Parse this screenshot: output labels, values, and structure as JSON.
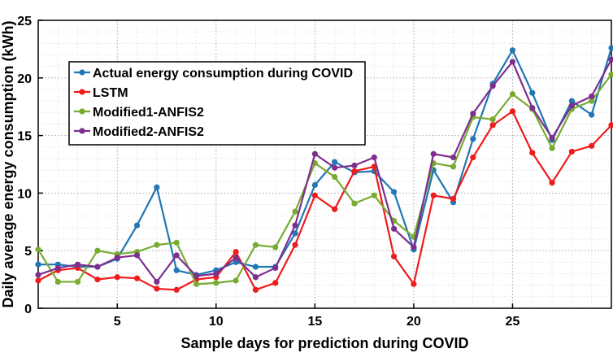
{
  "chart_data": {
    "type": "line",
    "title": "",
    "xlabel": "Sample days for prediction during COVID",
    "ylabel": "Daily average energy consumption (kWh)",
    "xlim": [
      1,
      30
    ],
    "ylim": [
      0,
      25
    ],
    "xticks": [
      5,
      10,
      15,
      20,
      25
    ],
    "yticks": [
      0,
      5,
      10,
      15,
      20,
      25
    ],
    "grid": true,
    "legend_position": "top-left",
    "x": [
      1,
      2,
      3,
      4,
      5,
      6,
      7,
      8,
      9,
      10,
      11,
      12,
      13,
      14,
      15,
      16,
      17,
      18,
      19,
      20,
      21,
      22,
      23,
      24,
      25,
      26,
      27,
      28,
      29,
      30
    ],
    "series": [
      {
        "name": "Actual energy consumption during COVID",
        "color": "#1f77b4",
        "values": [
          3.8,
          3.8,
          3.6,
          3.6,
          4.3,
          7.2,
          10.5,
          3.3,
          2.9,
          3.3,
          4.0,
          3.6,
          3.6,
          6.5,
          10.7,
          12.7,
          11.8,
          11.9,
          10.1,
          5.1,
          12.0,
          9.2,
          14.7,
          19.5,
          22.4,
          18.7,
          14.6,
          18.0,
          16.8,
          22.6
        ]
      },
      {
        "name": "LSTM",
        "color": "#ee1c1c",
        "values": [
          2.4,
          3.3,
          3.5,
          2.5,
          2.7,
          2.6,
          1.7,
          1.6,
          2.5,
          2.7,
          4.9,
          1.6,
          2.2,
          5.5,
          9.8,
          8.6,
          11.9,
          12.3,
          4.5,
          2.1,
          9.8,
          9.5,
          13.1,
          15.9,
          17.1,
          13.5,
          10.9,
          13.6,
          14.1,
          15.9
        ]
      },
      {
        "name": "Modified1-ANFIS2",
        "color": "#77ac30",
        "values": [
          5.1,
          2.3,
          2.3,
          5.0,
          4.7,
          4.9,
          5.5,
          5.7,
          2.1,
          2.2,
          2.4,
          5.5,
          5.3,
          8.4,
          12.6,
          11.4,
          9.1,
          9.8,
          7.6,
          6.2,
          12.6,
          12.3,
          16.6,
          16.4,
          18.6,
          17.3,
          13.9,
          17.3,
          18.0,
          20.3
        ]
      },
      {
        "name": "Modified2-ANFIS2",
        "color": "#7e2f8e",
        "values": [
          2.9,
          3.5,
          3.8,
          3.6,
          4.4,
          4.6,
          2.3,
          4.6,
          2.8,
          3.0,
          4.4,
          2.7,
          3.5,
          7.2,
          13.4,
          12.2,
          12.4,
          13.1,
          6.9,
          5.3,
          13.4,
          13.1,
          16.9,
          19.3,
          21.4,
          17.4,
          14.8,
          17.6,
          18.4,
          21.6
        ]
      }
    ]
  }
}
